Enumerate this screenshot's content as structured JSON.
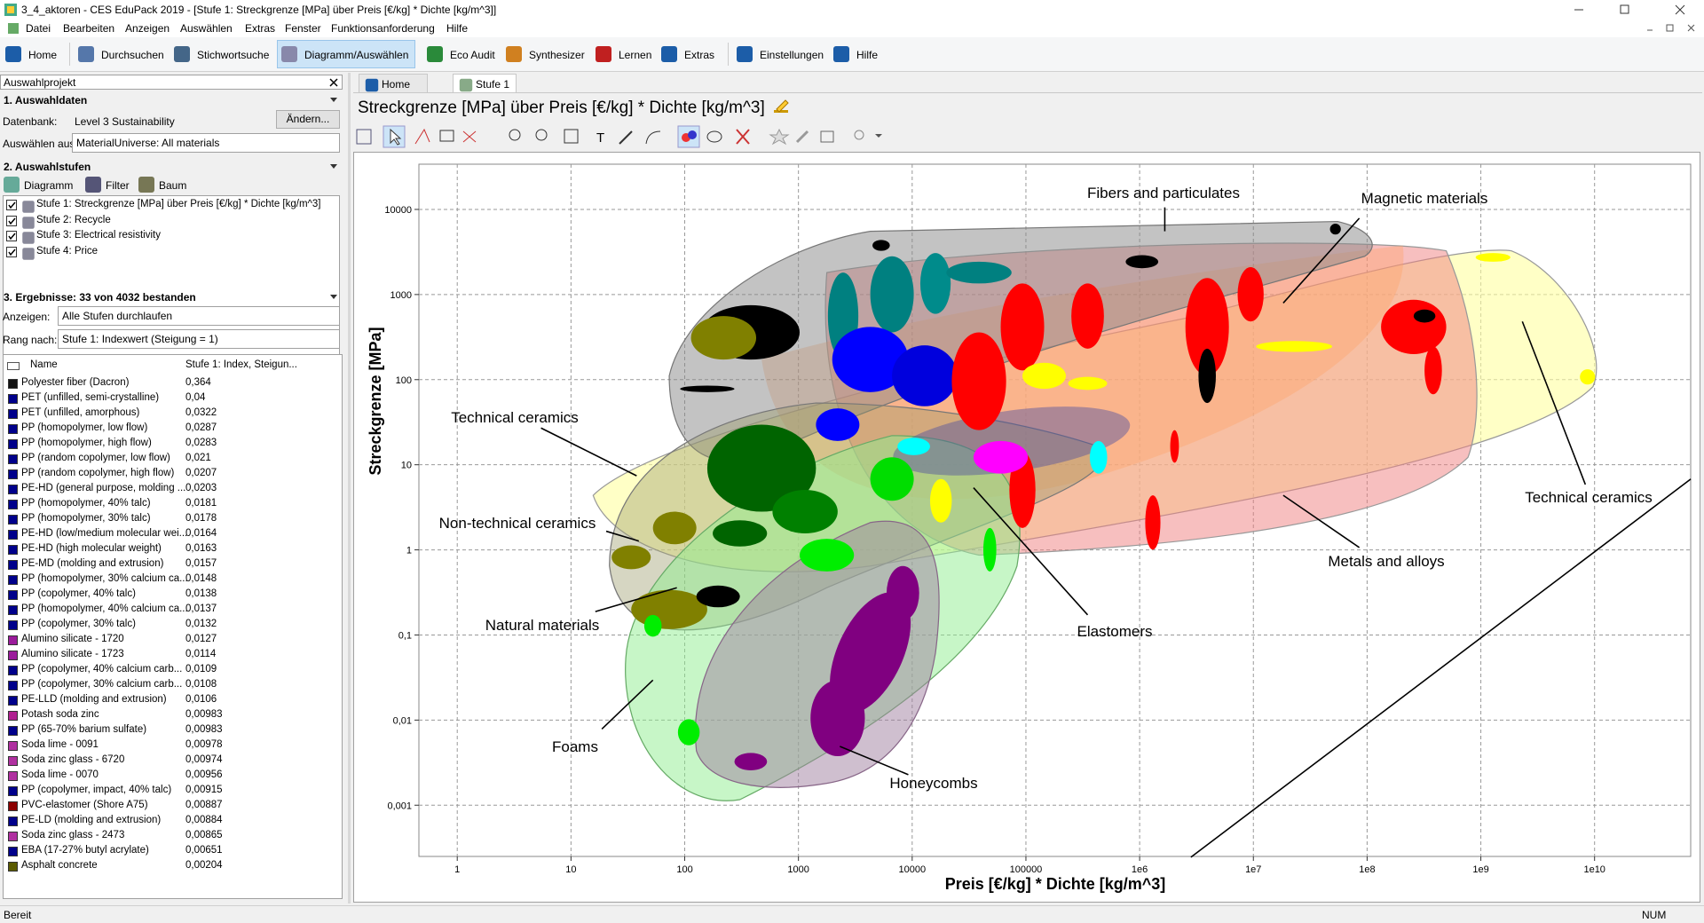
{
  "title_bar": "3_4_aktoren - CES EduPack 2019 - [Stufe 1: Streckgrenze [MPa] über Preis [€/kg] * Dichte [kg/m^3]]",
  "menu": [
    "Datei",
    "Bearbeiten",
    "Anzeigen",
    "Auswählen",
    "Extras",
    "Fenster",
    "Funktionsanforderung",
    "Hilfe"
  ],
  "toolbar": [
    "Home",
    "Durchsuchen",
    "Stichwortsuche",
    "Diagramm/Auswählen",
    "Eco Audit",
    "Synthesizer",
    "Lernen",
    "Extras",
    "Einstellungen",
    "Hilfe"
  ],
  "left_panel": {
    "title": "Auswahlprojekt",
    "section1": {
      "header": "1. Auswahldaten",
      "database_label": "Datenbank:",
      "database": "Level 3 Sustainability",
      "change_button": "Ändern...",
      "select_label": "Auswählen aus:",
      "select_value": "MaterialUniverse: All materials"
    },
    "section2": {
      "header": "2. Auswahlstufen",
      "buttons": [
        "Diagramm",
        "Filter",
        "Baum"
      ],
      "stages": [
        "Stufe 1: Streckgrenze [MPa] über Preis [€/kg] * Dichte [kg/m^3]",
        "Stufe 2: Recycle",
        "Stufe 3: Electrical resistivity",
        "Stufe 4: Price"
      ]
    },
    "section3": {
      "header": "3. Ergebnisse: 33 von 4032 bestanden",
      "show_label": "Anzeigen:",
      "show_value": "Alle Stufen durchlaufen",
      "rank_label": "Rang nach:",
      "rank_value": "Stufe 1: Indexwert (Steigung = 1)",
      "table": {
        "columns": [
          "Name",
          "Stufe 1: Index, Steigun..."
        ],
        "rows": [
          {
            "name": "Polyester fiber (Dacron)",
            "value": "0,364",
            "color": "#111111"
          },
          {
            "name": "PET (unfilled, semi-crystalline)",
            "value": "0,04",
            "color": "#00008b"
          },
          {
            "name": "PET (unfilled, amorphous)",
            "value": "0,0322",
            "color": "#00008b"
          },
          {
            "name": "PP (homopolymer, low flow)",
            "value": "0,0287",
            "color": "#00008b"
          },
          {
            "name": "PP (homopolymer, high flow)",
            "value": "0,0283",
            "color": "#00008b"
          },
          {
            "name": "PP (random copolymer, low flow)",
            "value": "0,021",
            "color": "#00008b"
          },
          {
            "name": "PP (random copolymer, high flow)",
            "value": "0,0207",
            "color": "#00008b"
          },
          {
            "name": "PE-HD (general purpose, molding ...",
            "value": "0,0203",
            "color": "#00008b"
          },
          {
            "name": "PP (homopolymer, 40% talc)",
            "value": "0,0181",
            "color": "#00008b"
          },
          {
            "name": "PP (homopolymer, 30% talc)",
            "value": "0,0178",
            "color": "#00008b"
          },
          {
            "name": "PE-HD (low/medium molecular wei...",
            "value": "0,0164",
            "color": "#00008b"
          },
          {
            "name": "PE-HD (high molecular weight)",
            "value": "0,0163",
            "color": "#00008b"
          },
          {
            "name": "PE-MD (molding and extrusion)",
            "value": "0,0157",
            "color": "#00008b"
          },
          {
            "name": "PP (homopolymer, 30% calcium ca...",
            "value": "0,0148",
            "color": "#00008b"
          },
          {
            "name": "PP (copolymer, 40% talc)",
            "value": "0,0138",
            "color": "#00008b"
          },
          {
            "name": "PP (homopolymer, 40% calcium ca...",
            "value": "0,0137",
            "color": "#00008b"
          },
          {
            "name": "PP (copolymer, 30% talc)",
            "value": "0,0132",
            "color": "#00008b"
          },
          {
            "name": "Alumino silicate - 1720",
            "value": "0,0127",
            "color": "#9b1b9b"
          },
          {
            "name": "Alumino silicate - 1723",
            "value": "0,0114",
            "color": "#9b1b9b"
          },
          {
            "name": "PP (copolymer, 40% calcium carb...",
            "value": "0,0109",
            "color": "#00008b"
          },
          {
            "name": "PP (copolymer, 30% calcium carb...",
            "value": "0,0108",
            "color": "#00008b"
          },
          {
            "name": "PE-LLD (molding and extrusion)",
            "value": "0,0106",
            "color": "#00008b"
          },
          {
            "name": "Potash soda zinc",
            "value": "0,00983",
            "color": "#b02090"
          },
          {
            "name": "PP (65-70% barium sulfate)",
            "value": "0,00983",
            "color": "#00008b"
          },
          {
            "name": "Soda lime - 0091",
            "value": "0,00978",
            "color": "#b030a0"
          },
          {
            "name": "Soda zinc glass - 6720",
            "value": "0,00974",
            "color": "#b030a0"
          },
          {
            "name": "Soda lime - 0070",
            "value": "0,00956",
            "color": "#b030a0"
          },
          {
            "name": "PP (copolymer, impact, 40% talc)",
            "value": "0,00915",
            "color": "#00008b"
          },
          {
            "name": "PVC-elastomer (Shore A75)",
            "value": "0,00887",
            "color": "#8b0000"
          },
          {
            "name": "PE-LD (molding and extrusion)",
            "value": "0,00884",
            "color": "#00008b"
          },
          {
            "name": "Soda zinc glass - 2473",
            "value": "0,00865",
            "color": "#b030a0"
          },
          {
            "name": "EBA (17-27% butyl acrylate)",
            "value": "0,00651",
            "color": "#00008b"
          },
          {
            "name": "Asphalt concrete",
            "value": "0,00204",
            "color": "#5a5a00"
          }
        ]
      }
    }
  },
  "tabs": [
    "Home",
    "Stufe 1"
  ],
  "chart_data": {
    "type": "scatter",
    "title": "Streckgrenze [MPa] über Preis [€/kg] * Dichte [kg/m^3]",
    "xlabel": "Preis [€/kg] * Dichte [kg/m^3]",
    "ylabel": "Streckgrenze [MPa]",
    "xscale": "log",
    "yscale": "log",
    "grid": true,
    "xlim": [
      0.46,
      70000000000
    ],
    "ylim": [
      0.00025,
      34000
    ],
    "xticks": [
      1,
      10,
      100,
      1000,
      10000,
      100000,
      {
        "value": 1000000,
        "label": "1e6"
      },
      {
        "value": 10000000,
        "label": "1e7"
      },
      {
        "value": 100000000,
        "label": "1e8"
      },
      {
        "value": 1000000000,
        "label": "1e9"
      },
      {
        "value": 10000000000,
        "label": "1e10"
      }
    ],
    "yticks": [
      {
        "value": 0.001,
        "label": "0,001"
      },
      {
        "value": 0.01,
        "label": "0,01"
      },
      {
        "value": 0.1,
        "label": "0,1"
      },
      1,
      10,
      100,
      1000,
      10000
    ],
    "annotations": [
      "Fibers and particulates",
      "Magnetic materials",
      "Technical ceramics",
      "Non-technical ceramics",
      "Natural materials",
      "Foams",
      "Honeycombs",
      "Elastomers",
      "Metals and alloys",
      "Technical ceramics"
    ]
  },
  "status_bar": {
    "left": "Bereit",
    "right": "NUM"
  }
}
